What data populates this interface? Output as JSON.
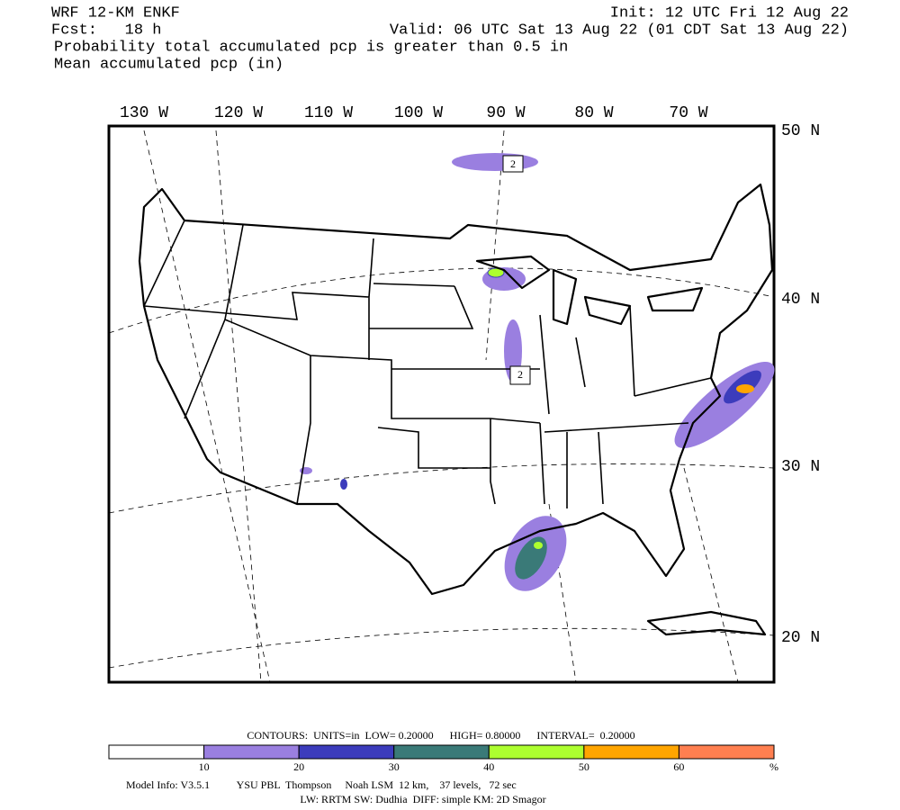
{
  "header": {
    "model": "WRF 12-KM ENKF",
    "init": "Init: 12 UTC Fri 12 Aug 22",
    "forecast": "Fcst:   18 h",
    "valid": "Valid: 06 UTC Sat 13 Aug 22 (01 CDT Sat 13 Aug 22)",
    "field_1": "Probability total accumulated pcp is greater than 0.5 in",
    "field_2": "Mean accumulated pcp (in)"
  },
  "map": {
    "longitude_labels": [
      "130 W",
      "120 W",
      "110 W",
      "100 W",
      "90 W",
      "80 W",
      "70 W"
    ],
    "latitude_labels": [
      "50 N",
      "40 N",
      "30 N",
      "20 N"
    ],
    "contour_labels": [
      "2",
      "2"
    ]
  },
  "legend": {
    "contours": "CONTOURS:  UNITS=in  LOW= 0.20000      HIGH= 0.80000      INTERVAL=  0.20000",
    "colors": [
      "#ffffff",
      "#9a7fe0",
      "#3c3cbc",
      "#3a7a78",
      "#adff2f",
      "#ffa500",
      "#ff7f50"
    ],
    "ticks": [
      10,
      20,
      30,
      40,
      50,
      60
    ],
    "unit": "%"
  },
  "footer": {
    "line_1": "Model Info: V3.5.1          YSU PBL  Thompson     Noah LSM  12 km,    37 levels,   72 sec",
    "line_2": "LW: RRTM SW: Dudhia  DIFF: simple KM: 2D Smagor"
  }
}
